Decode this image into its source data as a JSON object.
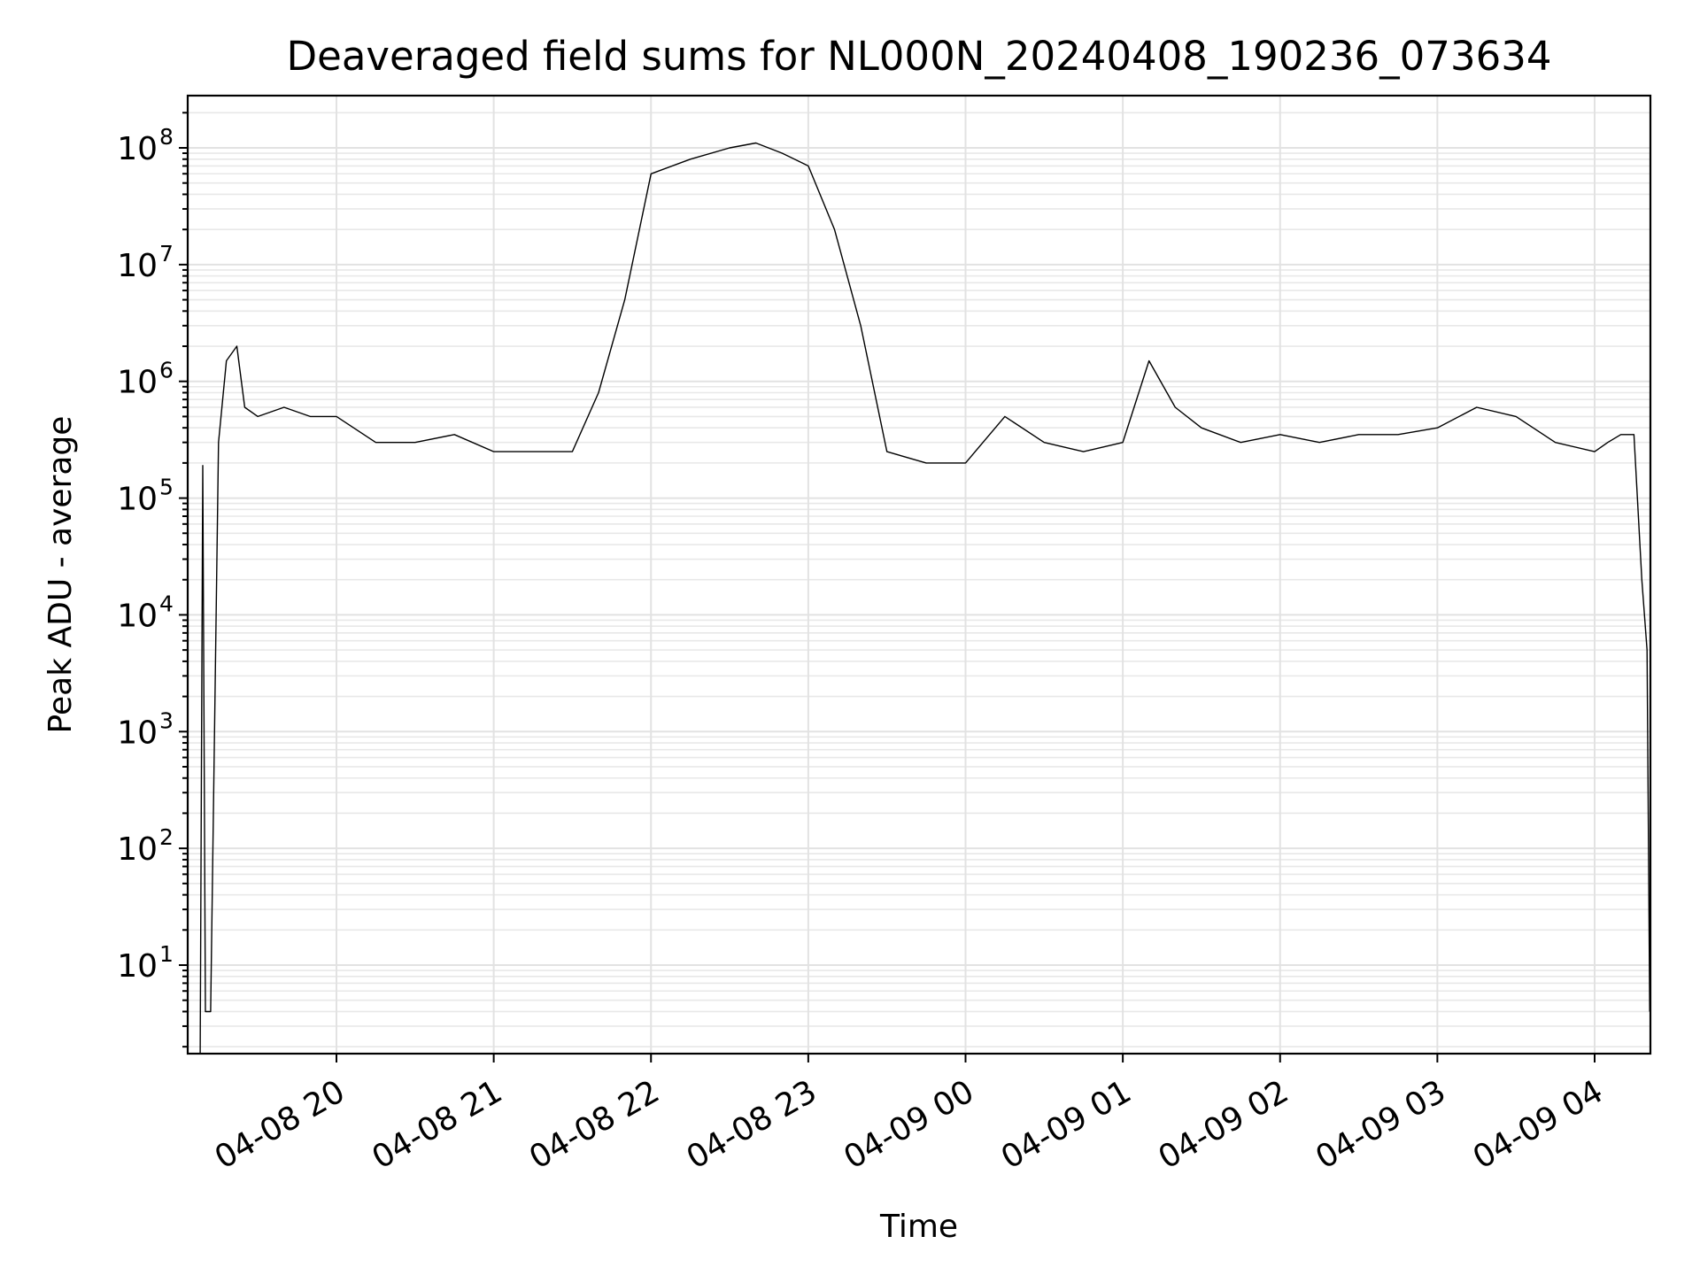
{
  "chart_data": {
    "type": "line",
    "title": "Deaveraged field sums for NL000N_20240408_190236_073634",
    "xlabel": "Time",
    "ylabel": "Peak ADU - average",
    "yscale": "log",
    "ylim": [
      1.6,
      280000000
    ],
    "xlim": [
      "2024-04-08 19:02",
      "2024-04-09 04:21"
    ],
    "grid": true,
    "line_color": "#000000",
    "x_ticks": [
      {
        "label": "04-08 20",
        "value": "2024-04-08 20:00"
      },
      {
        "label": "04-08 21",
        "value": "2024-04-08 21:00"
      },
      {
        "label": "04-08 22",
        "value": "2024-04-08 22:00"
      },
      {
        "label": "04-08 23",
        "value": "2024-04-08 23:00"
      },
      {
        "label": "04-09 00",
        "value": "2024-04-09 00:00"
      },
      {
        "label": "04-09 01",
        "value": "2024-04-09 01:00"
      },
      {
        "label": "04-09 02",
        "value": "2024-04-09 02:00"
      },
      {
        "label": "04-09 03",
        "value": "2024-04-09 03:00"
      },
      {
        "label": "04-09 04",
        "value": "2024-04-09 04:00"
      }
    ],
    "y_ticks": [
      {
        "base": "10",
        "exp": "1",
        "value": 10
      },
      {
        "base": "10",
        "exp": "2",
        "value": 100
      },
      {
        "base": "10",
        "exp": "3",
        "value": 1000
      },
      {
        "base": "10",
        "exp": "4",
        "value": 10000
      },
      {
        "base": "10",
        "exp": "5",
        "value": 100000
      },
      {
        "base": "10",
        "exp": "6",
        "value": 1000000
      },
      {
        "base": "10",
        "exp": "7",
        "value": 10000000
      },
      {
        "base": "10",
        "exp": "8",
        "value": 100000000
      }
    ],
    "series": [
      {
        "x": [
          "2024-04-08 19:08",
          "2024-04-08 19:09",
          "2024-04-08 19:10",
          "2024-04-08 19:12",
          "2024-04-08 19:15",
          "2024-04-08 19:18",
          "2024-04-08 19:22",
          "2024-04-08 19:25",
          "2024-04-08 19:30",
          "2024-04-08 19:40",
          "2024-04-08 19:50",
          "2024-04-08 20:00",
          "2024-04-08 20:15",
          "2024-04-08 20:30",
          "2024-04-08 20:45",
          "2024-04-08 21:00",
          "2024-04-08 21:15",
          "2024-04-08 21:30",
          "2024-04-08 21:40",
          "2024-04-08 21:50",
          "2024-04-08 22:00",
          "2024-04-08 22:15",
          "2024-04-08 22:30",
          "2024-04-08 22:40",
          "2024-04-08 22:50",
          "2024-04-08 23:00",
          "2024-04-08 23:10",
          "2024-04-08 23:20",
          "2024-04-08 23:30",
          "2024-04-08 23:45",
          "2024-04-09 00:00",
          "2024-04-09 00:15",
          "2024-04-09 00:30",
          "2024-04-09 00:45",
          "2024-04-09 01:00",
          "2024-04-09 01:10",
          "2024-04-09 01:20",
          "2024-04-09 01:30",
          "2024-04-09 01:45",
          "2024-04-09 02:00",
          "2024-04-09 02:15",
          "2024-04-09 02:30",
          "2024-04-09 02:45",
          "2024-04-09 03:00",
          "2024-04-09 03:15",
          "2024-04-09 03:30",
          "2024-04-09 03:45",
          "2024-04-09 04:00",
          "2024-04-09 04:05",
          "2024-04-09 04:10",
          "2024-04-09 04:15",
          "2024-04-09 04:18",
          "2024-04-09 04:20",
          "2024-04-09 04:21"
        ],
        "y": [
          1.6,
          190000,
          4,
          4,
          300000,
          1500000,
          2000000,
          600000,
          500000,
          600000,
          500000,
          500000,
          300000,
          300000,
          350000,
          250000,
          250000,
          250000,
          800000,
          5000000,
          60000000,
          80000000,
          100000000,
          110000000,
          90000000,
          70000000,
          20000000,
          3000000,
          250000,
          200000,
          200000,
          500000,
          300000,
          250000,
          300000,
          1500000,
          600000,
          400000,
          300000,
          350000,
          300000,
          350000,
          350000,
          400000,
          600000,
          500000,
          300000,
          250000,
          300000,
          350000,
          350000,
          20000,
          5000,
          4
        ]
      }
    ]
  }
}
